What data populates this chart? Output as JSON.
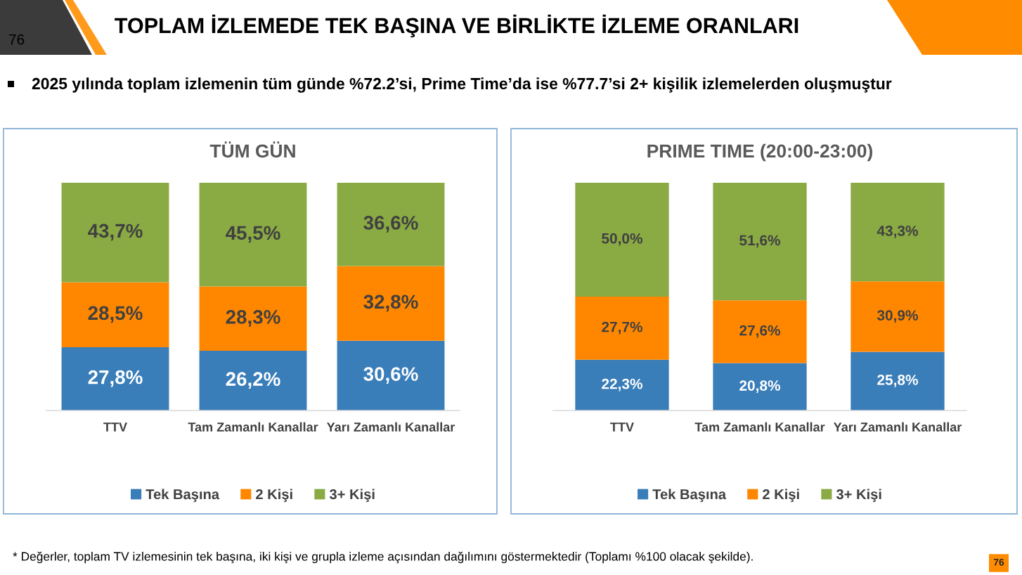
{
  "chart_data": [
    {
      "type": "other",
      "title": "TOPLAM İZLEMEDE TEK BAŞINA VE BİRLİKTE İZLEME ORANLARI",
      "subtitle": "2025 yılında toplam izlemenin tüm günde %72.2’si, Prime Time’da ise %77.7’si 2+ kişilik izlemelerden oluşmuştur",
      "annotations": [
        "76",
        "* Değerler, toplam TV izlemesinin tek başına, iki kişi ve grupla izleme açısından dağılımını göstermektedir (Toplamı %100 olacak şekilde).",
        "76"
      ]
    },
    {
      "type": "bar",
      "stacked": true,
      "title": "TÜM GÜN",
      "categories": [
        "TTV",
        "Tam Zamanlı Kanallar",
        "Yarı Zamanlı Kanallar"
      ],
      "tick_labels": "x",
      "legend": "bottom",
      "series": [
        {
          "name": "Tek Başına",
          "color": "#397db9",
          "values": [
            27.8,
            26.2,
            30.6
          ],
          "value_labels": [
            "27,8%",
            "26,2%",
            "30,6%"
          ]
        },
        {
          "name": "2 Kişi",
          "color": "#ff8700",
          "values": [
            28.5,
            28.3,
            32.8
          ],
          "value_labels": [
            "28,5%",
            "28,3%",
            "32,8%"
          ]
        },
        {
          "name": "3+ Kişi",
          "color": "#8aaa44",
          "values": [
            43.7,
            45.5,
            36.6
          ],
          "value_labels": [
            "43,7%",
            "45,5%",
            "36,6%"
          ]
        }
      ]
    },
    {
      "type": "bar",
      "stacked": true,
      "title": "PRIME TIME (20:00-23:00)",
      "categories": [
        "TTV",
        "Tam Zamanlı Kanallar",
        "Yarı Zamanlı Kanallar"
      ],
      "tick_labels": "x",
      "legend": "bottom",
      "series": [
        {
          "name": "Tek Başına",
          "color": "#397db9",
          "values": [
            22.3,
            20.8,
            25.8
          ],
          "value_labels": [
            "22,3%",
            "20,8%",
            "25,8%"
          ]
        },
        {
          "name": "2 Kişi",
          "color": "#ff8700",
          "values": [
            27.7,
            27.6,
            30.9
          ],
          "value_labels": [
            "27,7%",
            "27,6%",
            "30,9%"
          ]
        },
        {
          "name": "3+ Kişi",
          "color": "#8aaa44",
          "values": [
            50.0,
            51.6,
            43.3
          ],
          "value_labels": [
            "50,0%",
            "51,6%",
            "43,3%"
          ]
        }
      ]
    }
  ]
}
